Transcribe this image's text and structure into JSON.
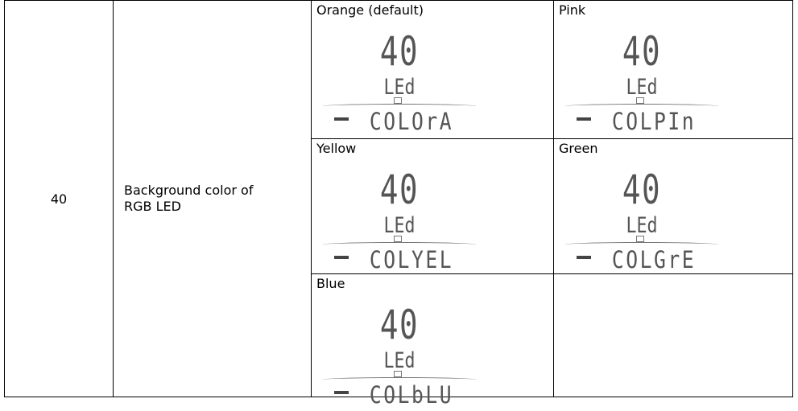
{
  "setting": {
    "number": "40",
    "description": "Background color of RGB LED"
  },
  "options": [
    {
      "label": "Orange (default)",
      "display": {
        "value": "40",
        "unit": "LEd",
        "code": "COLOrA"
      }
    },
    {
      "label": "Pink",
      "display": {
        "value": "40",
        "unit": "LEd",
        "code": "COLPIn"
      }
    },
    {
      "label": "Yellow",
      "display": {
        "value": "40",
        "unit": "LEd",
        "code": "COLYEL"
      }
    },
    {
      "label": "Green",
      "display": {
        "value": "40",
        "unit": "LEd",
        "code": "COLGrE"
      }
    },
    {
      "label": "Blue",
      "display": {
        "value": "40",
        "unit": "LEd",
        "code": "COLbLU"
      }
    }
  ]
}
